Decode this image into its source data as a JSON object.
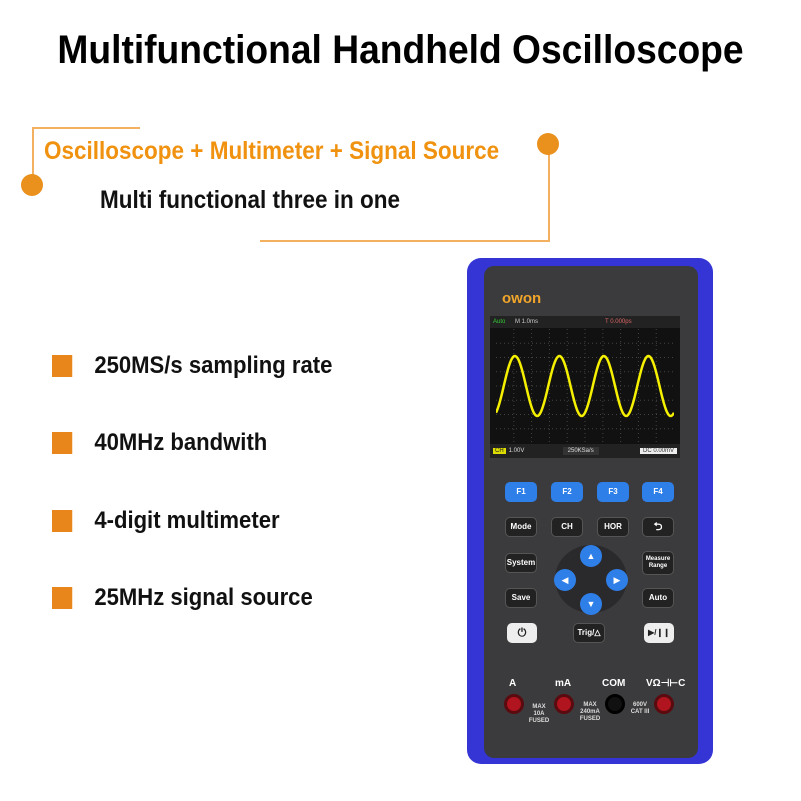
{
  "title": "Multifunctional Handheld Oscilloscope",
  "subtitle": "Oscilloscope + Multimeter + Signal Source",
  "tagline": "Multi functional three in one",
  "features": [
    "250MS/s sampling rate",
    "40MHz  bandwith",
    "4-digit multimeter",
    "25MHz signal source"
  ],
  "colors": {
    "accent": "#f0920f",
    "device_frame": "#3535d6",
    "button_blue": "#2f7fe8",
    "waveform": "#f5f000"
  },
  "device": {
    "brand": "owon",
    "screen": {
      "mode": "Auto",
      "timebase": "M 1.0ms",
      "trigger_time": "T 0.000ps",
      "channel": "CH",
      "volts": "1.00V",
      "sample_rate": "250KSa/s",
      "trigger": "DC 0.00mV"
    },
    "fkeys": [
      "F1",
      "F2",
      "F3",
      "F4"
    ],
    "buttons": {
      "mode": "Mode",
      "ch": "CH",
      "hor": "HOR",
      "back": "⮌",
      "system": "System",
      "measure": "Measure Range",
      "save": "Save",
      "auto": "Auto",
      "power": "⏻",
      "trig": "Trig/△",
      "run": "▶/❙❙"
    },
    "dpad": {
      "up": "▲",
      "down": "▼",
      "left": "◀",
      "right": "▶"
    },
    "jacks": [
      "A",
      "mA",
      "COM",
      "VΩ⊣⊢C"
    ],
    "warnings": {
      "a": "MAX 10A FUSED",
      "ma": "MAX 240mA FUSED",
      "com": "600V CAT III"
    }
  }
}
